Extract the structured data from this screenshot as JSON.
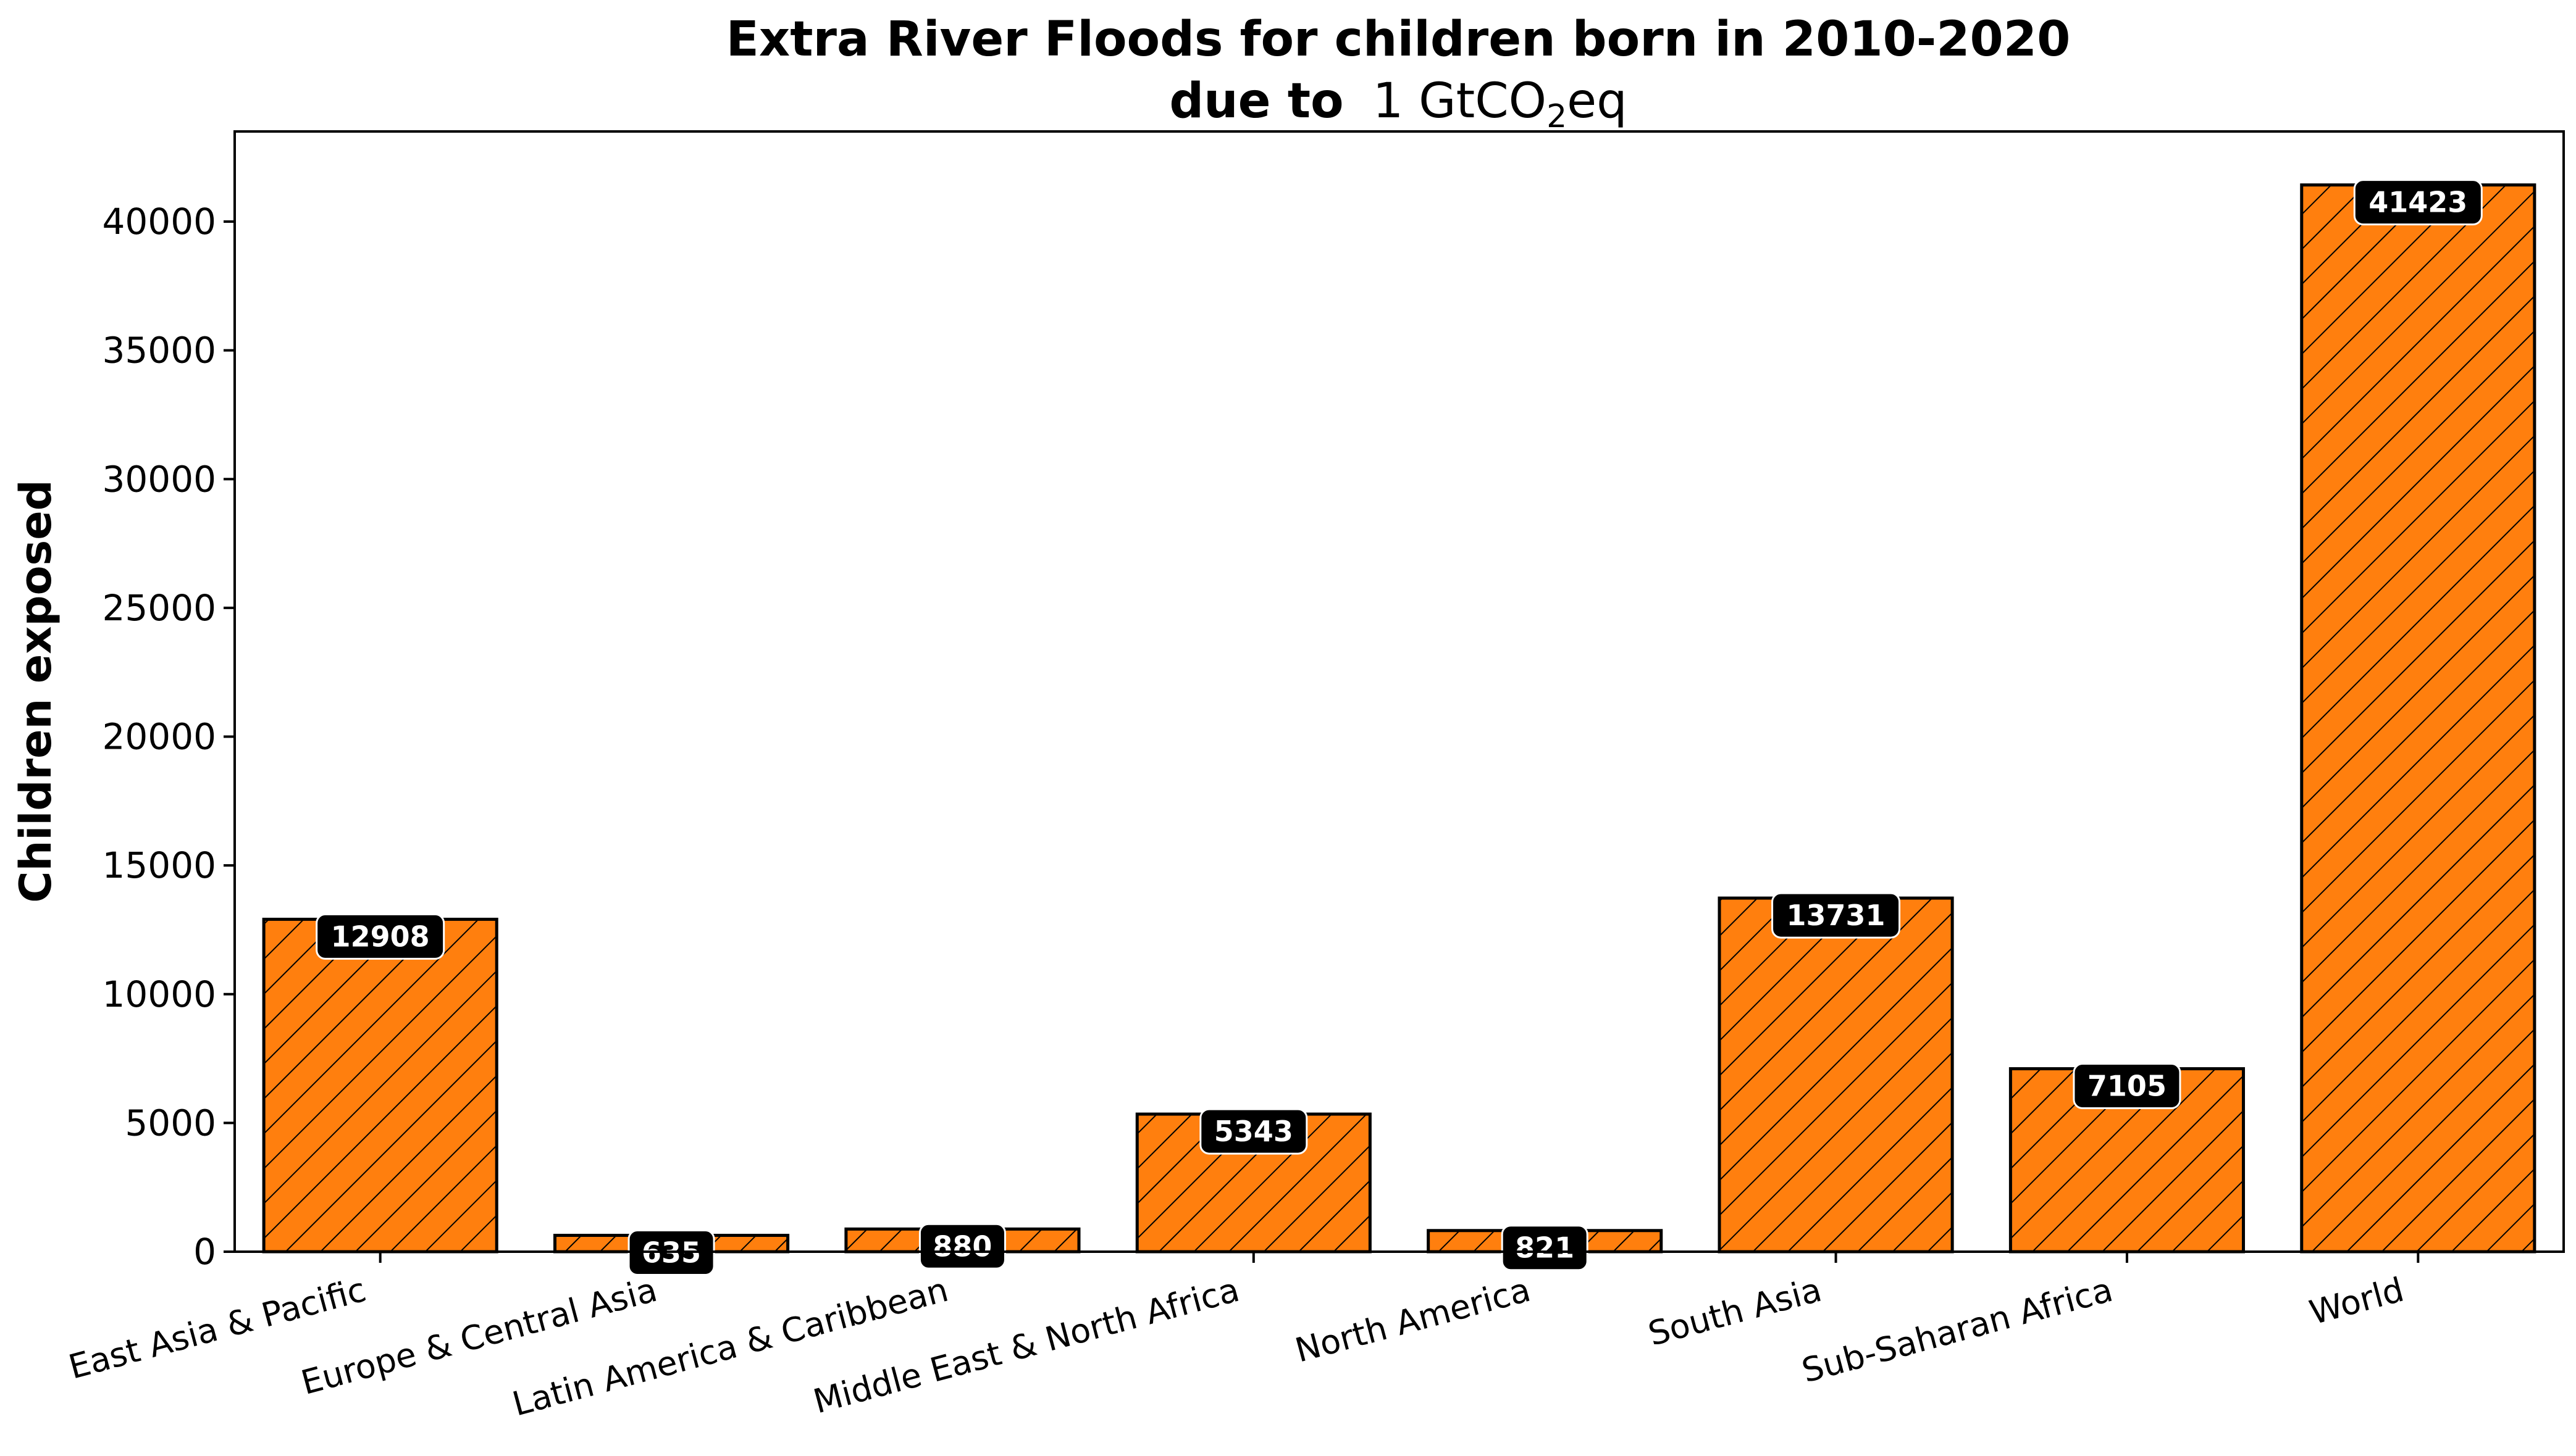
{
  "chart_data": {
    "type": "bar",
    "title_line1": "Extra River Floods for children born in 2010-2020",
    "title_line2_prefix": "due to",
    "title_line2_amount": "1 GtCO",
    "title_line2_subscript": "2",
    "title_line2_suffix": "eq",
    "xlabel": "",
    "ylabel": "Children exposed",
    "ylim": [
      0,
      43500
    ],
    "yticks": [
      0,
      5000,
      10000,
      15000,
      20000,
      25000,
      30000,
      35000,
      40000
    ],
    "categories": [
      "East Asia & Pacific",
      "Europe & Central Asia",
      "Latin America & Caribbean",
      "Middle East & North Africa",
      "North America",
      "South Asia",
      "Sub-Saharan Africa",
      "World"
    ],
    "values": [
      12908,
      635,
      880,
      5343,
      821,
      13731,
      7105,
      41423
    ],
    "data_labels": [
      "12908",
      "635",
      "880",
      "5343",
      "821",
      "13731",
      "7105",
      "41423"
    ],
    "bar_color": "#ff7f0e",
    "bar_edge_color": "#000000",
    "bar_hatch": "diagonal",
    "label_box_color": "#000000",
    "label_text_color": "#ffffff",
    "grid": false,
    "legend": "none"
  }
}
